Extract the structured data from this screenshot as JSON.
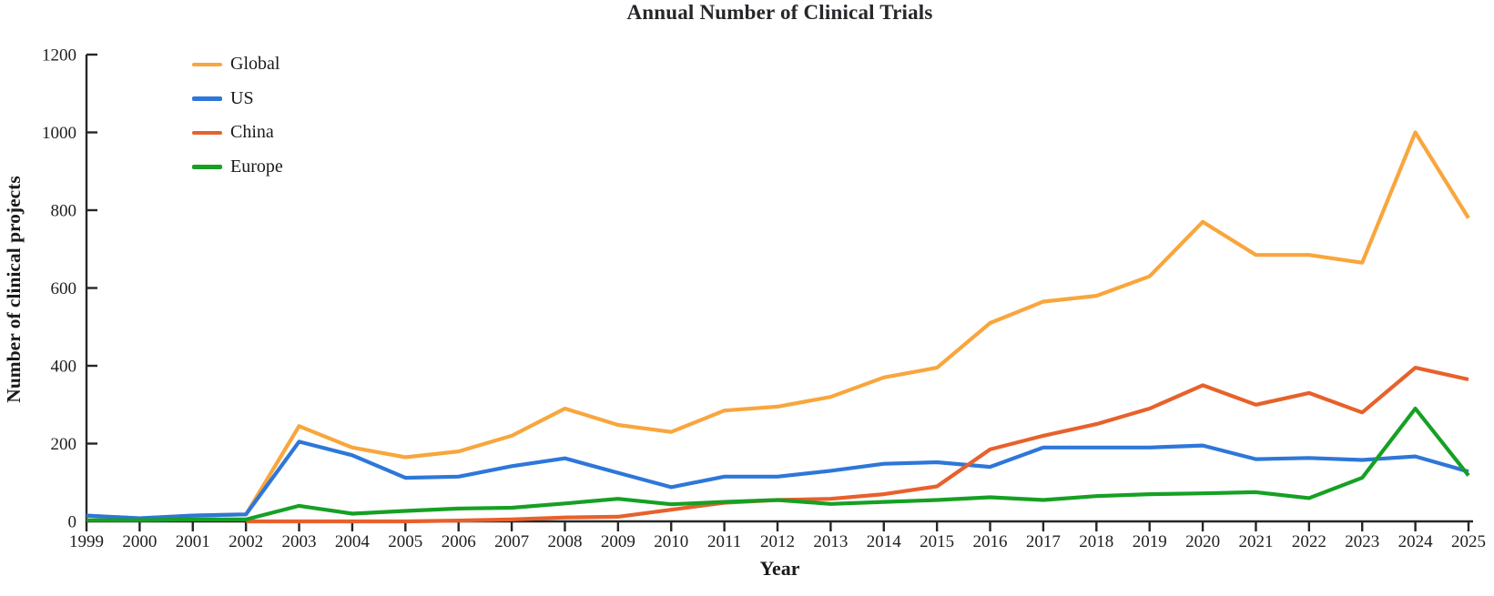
{
  "chart_data": {
    "type": "line",
    "title": "Annual Number of Clinical Trials",
    "xlabel": "Year",
    "ylabel": "Number of clinical projects",
    "x": [
      1999,
      2000,
      2001,
      2002,
      2003,
      2004,
      2005,
      2006,
      2007,
      2008,
      2009,
      2010,
      2011,
      2012,
      2013,
      2014,
      2015,
      2016,
      2017,
      2018,
      2019,
      2020,
      2021,
      2022,
      2023,
      2024,
      2025
    ],
    "ylim": [
      0,
      1200
    ],
    "yticks": [
      0,
      200,
      400,
      600,
      800,
      1000,
      1200
    ],
    "grid": false,
    "legend_position": "top-left",
    "axis_color": "#262626",
    "series": [
      {
        "name": "Global",
        "color": "#F8A63D",
        "values": [
          15,
          8,
          15,
          18,
          245,
          190,
          165,
          180,
          220,
          290,
          248,
          230,
          285,
          295,
          320,
          370,
          395,
          510,
          565,
          580,
          630,
          770,
          685,
          685,
          665,
          1000,
          780
        ]
      },
      {
        "name": "US",
        "color": "#2E77D9",
        "values": [
          15,
          8,
          15,
          18,
          205,
          170,
          112,
          115,
          142,
          162,
          125,
          88,
          115,
          115,
          130,
          148,
          152,
          140,
          190,
          190,
          190,
          195,
          160,
          163,
          158,
          167,
          128
        ]
      },
      {
        "name": "China",
        "color": "#E7612C",
        "values": [
          null,
          null,
          null,
          0,
          0,
          0,
          0,
          2,
          5,
          10,
          12,
          30,
          48,
          55,
          58,
          70,
          90,
          185,
          220,
          250,
          290,
          350,
          300,
          330,
          280,
          395,
          365
        ]
      },
      {
        "name": "Europe",
        "color": "#16A024",
        "values": [
          3,
          3,
          5,
          5,
          40,
          20,
          27,
          33,
          35,
          46,
          58,
          44,
          50,
          55,
          45,
          50,
          55,
          62,
          55,
          65,
          70,
          72,
          75,
          60,
          112,
          290,
          118
        ]
      }
    ]
  }
}
